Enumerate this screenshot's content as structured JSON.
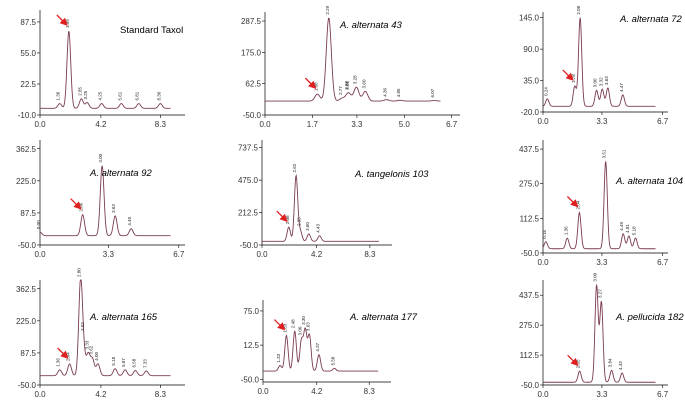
{
  "chart_data": [
    {
      "type": "line",
      "title": "Standard Taxol",
      "title_italic": false,
      "xlim": [
        0,
        10
      ],
      "ylim": [
        -10,
        100
      ],
      "xticks": [
        "0.0",
        "4.2",
        "8.3"
      ],
      "xtick_values": [
        0,
        4.2,
        8.3
      ],
      "yticks": [
        "-10.0",
        "22.5",
        "55.0",
        "87.5"
      ],
      "ytick_values": [
        -10,
        22.5,
        55,
        87.5
      ],
      "baseline": -3,
      "arrow_at": 1.99,
      "peaks": [
        {
          "t": 1.36,
          "h": 2
        },
        {
          "t": 1.99,
          "h": 78
        },
        {
          "t": 2.85,
          "h": 7
        },
        {
          "t": 3.25,
          "h": 3
        },
        {
          "t": 4.25,
          "h": 2
        },
        {
          "t": 5.61,
          "h": 2
        },
        {
          "t": 6.81,
          "h": 2
        },
        {
          "t": 8.3,
          "h": 2
        }
      ],
      "peak_labels": [
        "1.36",
        "1.99",
        "2.85",
        "3.25",
        "4.25",
        "5.61",
        "6.81",
        "8.30"
      ]
    },
    {
      "type": "line",
      "title": "A. alternata 43",
      "title_italic": true,
      "xlim": [
        0,
        7
      ],
      "ylim": [
        -50,
        320
      ],
      "xticks": [
        "0.0",
        "1.7",
        "3.3",
        "5.0",
        "6.7"
      ],
      "xtick_values": [
        0,
        1.7,
        3.3,
        5.0,
        6.7
      ],
      "yticks": [
        "-50.0",
        "62.5",
        "175.0",
        "287.5"
      ],
      "ytick_values": [
        -50,
        62.5,
        175,
        287.5
      ],
      "baseline": 0,
      "arrow_at": 1.88,
      "peaks": [
        {
          "t": 1.88,
          "h": 25
        },
        {
          "t": 2.29,
          "h": 300
        },
        {
          "t": 2.77,
          "h": 10
        },
        {
          "t": 2.98,
          "h": 15
        },
        {
          "t": 3.01,
          "h": 15
        },
        {
          "t": 3.28,
          "h": 50
        },
        {
          "t": 3.6,
          "h": 35
        },
        {
          "t": 4.36,
          "h": 5
        },
        {
          "t": 4.85,
          "h": 3
        },
        {
          "t": 6.07,
          "h": 2
        }
      ],
      "peak_labels": [
        "1.88",
        "2.29",
        "2.77",
        "2.98",
        "3.01",
        "3.28",
        "3.60",
        "4.36",
        "4.85",
        "6.07"
      ]
    },
    {
      "type": "line",
      "title": "A. alternata 72",
      "title_italic": true,
      "xlim": [
        0,
        7
      ],
      "ylim": [
        -20,
        155
      ],
      "xticks": [
        "0.0",
        "3.3",
        "6.7"
      ],
      "xtick_values": [
        0,
        3.3,
        6.7
      ],
      "yticks": [
        "-20.0",
        "35.0",
        "90.0",
        "145.0"
      ],
      "ytick_values": [
        -20,
        35,
        90,
        145
      ],
      "baseline": -10,
      "arrow_at": 1.78,
      "peaks": [
        {
          "t": 0.24,
          "h": 3
        },
        {
          "t": 1.78,
          "h": 25
        },
        {
          "t": 2.08,
          "h": 145
        },
        {
          "t": 3.0,
          "h": 18
        },
        {
          "t": 3.32,
          "h": 20
        },
        {
          "t": 3.63,
          "h": 22
        },
        {
          "t": 4.47,
          "h": 10
        }
      ],
      "peak_labels": [
        "0.24",
        "1.78",
        "2.08",
        "3.00",
        "3.32",
        "3.63",
        "4.47"
      ]
    },
    {
      "type": "line",
      "title": "A. alternata 92",
      "title_italic": true,
      "xlim": [
        0,
        7
      ],
      "ylim": [
        -50,
        400
      ],
      "xticks": [
        "0.0",
        "3.3",
        "6.7"
      ],
      "xtick_values": [
        0,
        3.3,
        6.7
      ],
      "yticks": [
        "-50.0",
        "87.5",
        "225.0",
        "362.5"
      ],
      "ytick_values": [
        -50,
        87.5,
        225,
        362.5
      ],
      "baseline": -10,
      "arrow_at": 2.06,
      "peaks": [
        {
          "t": 0.0,
          "h": 5
        },
        {
          "t": 2.06,
          "h": 80
        },
        {
          "t": 3.0,
          "h": 290
        },
        {
          "t": 3.63,
          "h": 75
        },
        {
          "t": 4.4,
          "h": 20
        }
      ],
      "peak_labels": [
        "0.00",
        "2.06",
        "3.00",
        "3.63",
        "4.40"
      ]
    },
    {
      "type": "line",
      "title": "A. tangelonis 103",
      "title_italic": true,
      "xlim": [
        0,
        10
      ],
      "ylim": [
        -50,
        800
      ],
      "xticks": [
        "0.0",
        "4.2",
        "8.3"
      ],
      "xtick_values": [
        0,
        4.2,
        8.3
      ],
      "yticks": [
        "-50.0",
        "212.5",
        "475.0",
        "737.5"
      ],
      "ytick_values": [
        -50,
        212.5,
        475,
        737.5
      ],
      "baseline": -20,
      "arrow_at": 2.06,
      "peaks": [
        {
          "t": 2.06,
          "h": 95
        },
        {
          "t": 2.62,
          "h": 510
        },
        {
          "t": 2.95,
          "h": 60
        },
        {
          "t": 3.6,
          "h": 40
        },
        {
          "t": 4.43,
          "h": 25
        }
      ],
      "peak_labels": [
        "2.06",
        "2.62",
        "2.95",
        "3.60",
        "4.43"
      ]
    },
    {
      "type": "line",
      "title": "A. alternata 104",
      "title_italic": true,
      "xlim": [
        0,
        7
      ],
      "ylim": [
        -50,
        480
      ],
      "xticks": [
        "0.0",
        "3.3",
        "6.7"
      ],
      "xtick_values": [
        0,
        3.3,
        6.7
      ],
      "yticks": [
        "-50.0",
        "112.5",
        "275.0",
        "437.5"
      ],
      "ytick_values": [
        -50,
        112.5,
        275,
        437.5
      ],
      "baseline": -30,
      "arrow_at": 2.04,
      "peaks": [
        {
          "t": 0.16,
          "h": 3
        },
        {
          "t": 1.36,
          "h": 20
        },
        {
          "t": 2.04,
          "h": 140
        },
        {
          "t": 3.51,
          "h": 380
        },
        {
          "t": 4.49,
          "h": 40
        },
        {
          "t": 4.81,
          "h": 30
        },
        {
          "t": 5.18,
          "h": 20
        }
      ],
      "peak_labels": [
        "0.16",
        "1.36",
        "2.04",
        "3.51",
        "4.49",
        "4.81",
        "5.18"
      ]
    },
    {
      "type": "line",
      "title": "A. alternata 165",
      "title_italic": true,
      "xlim": [
        0,
        10
      ],
      "ylim": [
        -50,
        400
      ],
      "xticks": [
        "0.0",
        "4.2",
        "8.3"
      ],
      "xtick_values": [
        0,
        4.2,
        8.3
      ],
      "yticks": [
        "-50.0",
        "87.5",
        "225.0",
        "362.5"
      ],
      "ytick_values": [
        -50,
        87.5,
        225,
        362.5
      ],
      "baseline": -10,
      "arrow_at": 2.04,
      "peaks": [
        {
          "t": 1.36,
          "h": 15
        },
        {
          "t": 2.04,
          "h": 40
        },
        {
          "t": 2.8,
          "h": 395
        },
        {
          "t": 3.02,
          "h": 70
        },
        {
          "t": 3.33,
          "h": 80
        },
        {
          "t": 3.62,
          "h": 60
        },
        {
          "t": 4.0,
          "h": 40
        },
        {
          "t": 5.18,
          "h": 20
        },
        {
          "t": 5.87,
          "h": 15
        },
        {
          "t": 6.58,
          "h": 12
        },
        {
          "t": 7.33,
          "h": 10
        }
      ],
      "peak_labels": [
        "1.36",
        "2.04",
        "2.80",
        "3.02",
        "3.33",
        "3.62",
        "4.00",
        "5.18",
        "5.87",
        "6.58",
        "7.33"
      ]
    },
    {
      "type": "line",
      "title": "A. alternata 177",
      "title_italic": true,
      "xlim": [
        0,
        10
      ],
      "ylim": [
        -55,
        95
      ],
      "xticks": [
        "0.0",
        "4.2",
        "8.3"
      ],
      "xtick_values": [
        0,
        4.2,
        8.3
      ],
      "yticks": [
        "-50.0",
        "12.5",
        "75.0"
      ],
      "ytick_values": [
        -50,
        12.5,
        75
      ],
      "baseline": -35,
      "arrow_at": 1.83,
      "peaks": [
        {
          "t": 1.33,
          "h": -25
        },
        {
          "t": 1.83,
          "h": 30
        },
        {
          "t": 2.48,
          "h": 38
        },
        {
          "t": 3.0,
          "h": 20
        },
        {
          "t": 3.3,
          "h": 38
        },
        {
          "t": 3.63,
          "h": 30
        },
        {
          "t": 4.37,
          "h": -5
        },
        {
          "t": 5.58,
          "h": -30
        }
      ],
      "peak_labels": [
        "1.33",
        "1.83",
        "2.48",
        "3.00",
        "3.30",
        "3.63",
        "4.37",
        "5.58"
      ]
    },
    {
      "type": "line",
      "title": "A. pellucida 182",
      "title_italic": true,
      "xlim": [
        0,
        7
      ],
      "ylim": [
        -50,
        520
      ],
      "xticks": [
        "0.0",
        "3.3",
        "6.7"
      ],
      "xtick_values": [
        0,
        3.3,
        6.7
      ],
      "yticks": [
        "-50.0",
        "112.5",
        "275.0",
        "437.5"
      ],
      "ytick_values": [
        -50,
        112.5,
        275,
        437.5
      ],
      "baseline": -35,
      "arrow_at": 2.05,
      "peaks": [
        {
          "t": 2.05,
          "h": 25
        },
        {
          "t": 3.0,
          "h": 490
        },
        {
          "t": 3.27,
          "h": 400
        },
        {
          "t": 3.84,
          "h": 30
        },
        {
          "t": 4.43,
          "h": 15
        }
      ],
      "peak_labels": [
        "2.05",
        "3.00",
        "3.27",
        "3.84",
        "4.43"
      ]
    }
  ]
}
